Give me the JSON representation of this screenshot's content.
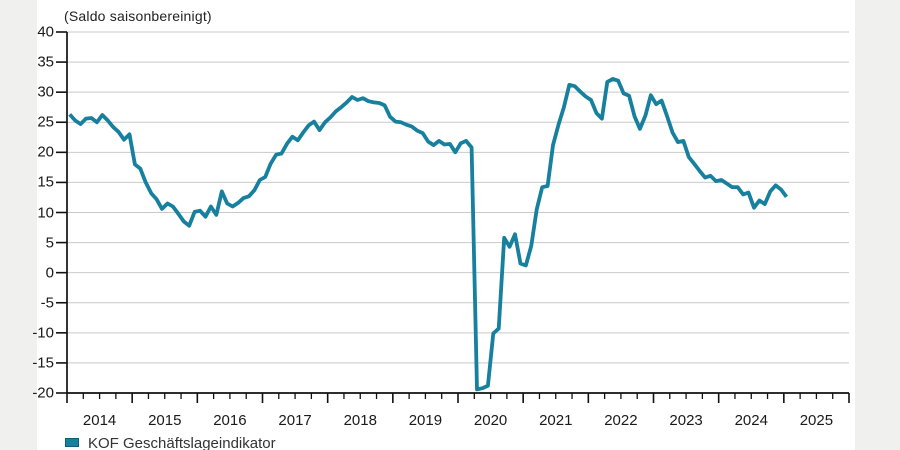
{
  "subtitle": "(Saldo saisonbereinigt)",
  "legend": {
    "label": "KOF Geschäftslageindikator"
  },
  "colors": {
    "line": "#17809e",
    "grid": "#c9c9c9",
    "axis": "#111111",
    "gutter": "#f0f0ee",
    "text": "#1a1a1a"
  },
  "chart_data": {
    "type": "line",
    "title": "",
    "ylabel_annotation": "(Saldo saisonbereinigt)",
    "legend_entries": [
      "KOF Geschäftslageindikator"
    ],
    "legend_position": "bottom-left",
    "grid": true,
    "ylim": [
      -20,
      40
    ],
    "ytick_step": 5,
    "ytick_labels": [
      "40",
      "35",
      "30",
      "25",
      "20",
      "15",
      "10",
      "5",
      "0",
      "-5",
      "-10",
      "-15",
      "-20"
    ],
    "xtick_years": [
      "2014",
      "2015",
      "2016",
      "2017",
      "2018",
      "2019",
      "2020",
      "2021",
      "2022",
      "2023",
      "2024",
      "2025"
    ],
    "x_axis_span_years": [
      2014,
      2026
    ],
    "minor_ticks": "quarterly",
    "series": [
      {
        "name": "KOF Geschäftslageindikator",
        "frequency": "monthly",
        "start": "2014-01",
        "values": [
          26.3,
          25.3,
          24.7,
          25.6,
          25.7,
          25.0,
          26.2,
          25.3,
          24.2,
          23.4,
          22.1,
          23.0,
          18.0,
          17.3,
          15.0,
          13.2,
          12.2,
          10.6,
          11.5,
          11.0,
          9.8,
          8.5,
          7.8,
          10.1,
          10.3,
          9.3,
          11.0,
          9.6,
          13.5,
          11.5,
          11.0,
          11.6,
          12.4,
          12.7,
          13.7,
          15.4,
          15.9,
          18.1,
          19.6,
          19.8,
          21.4,
          22.6,
          22.0,
          23.3,
          24.5,
          25.1,
          23.7,
          25.0,
          25.8,
          26.8,
          27.5,
          28.3,
          29.2,
          28.7,
          29.0,
          28.5,
          28.3,
          28.2,
          27.8,
          25.9,
          25.1,
          25.0,
          24.6,
          24.3,
          23.6,
          23.2,
          21.8,
          21.2,
          21.9,
          21.3,
          21.4,
          20.0,
          21.5,
          21.9,
          20.8,
          -19.4,
          -19.2,
          -18.8,
          -10.1,
          -9.3,
          5.8,
          4.3,
          6.4,
          1.5,
          1.2,
          4.5,
          10.5,
          14.2,
          14.4,
          21.2,
          24.6,
          27.5,
          31.2,
          31.0,
          30.1,
          29.3,
          28.7,
          26.5,
          25.6,
          31.7,
          32.2,
          31.9,
          29.8,
          29.4,
          26.0,
          23.9,
          26.1,
          29.5,
          28.0,
          28.6,
          26.0,
          23.3,
          21.7,
          21.9,
          19.2,
          18.1,
          16.9,
          15.8,
          16.1,
          15.2,
          15.4,
          14.8,
          14.2,
          14.2,
          13.0,
          13.3,
          10.8,
          12.0,
          11.4,
          13.5,
          14.5,
          13.8,
          12.6
        ]
      }
    ]
  }
}
